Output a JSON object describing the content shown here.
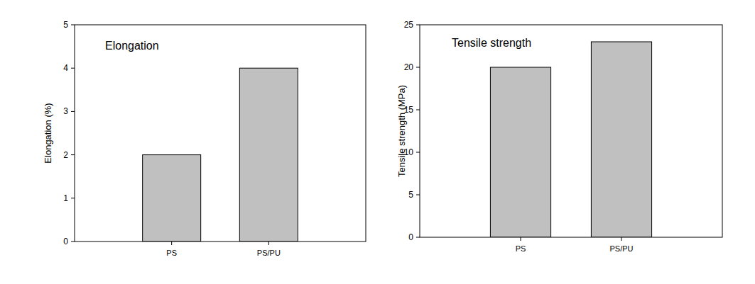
{
  "chart_data": [
    {
      "type": "bar",
      "title": "Elongation",
      "y_label": "Elongation (%)",
      "categories": [
        "PS",
        "PS/PU"
      ],
      "values": [
        2,
        4
      ],
      "color": "#c0c0c0",
      "ylim": [
        0,
        5
      ],
      "yticks": [
        0,
        1,
        2,
        3,
        4,
        5
      ]
    },
    {
      "type": "bar",
      "title": "Tensile strength",
      "y_label": "Tensile strength (MPa)",
      "categories": [
        "PS",
        "PS/PU"
      ],
      "values": [
        20,
        23
      ],
      "color": "#c0c0c0",
      "ylim": [
        0,
        25
      ],
      "yticks": [
        0,
        5,
        10,
        15,
        20,
        25
      ]
    }
  ]
}
